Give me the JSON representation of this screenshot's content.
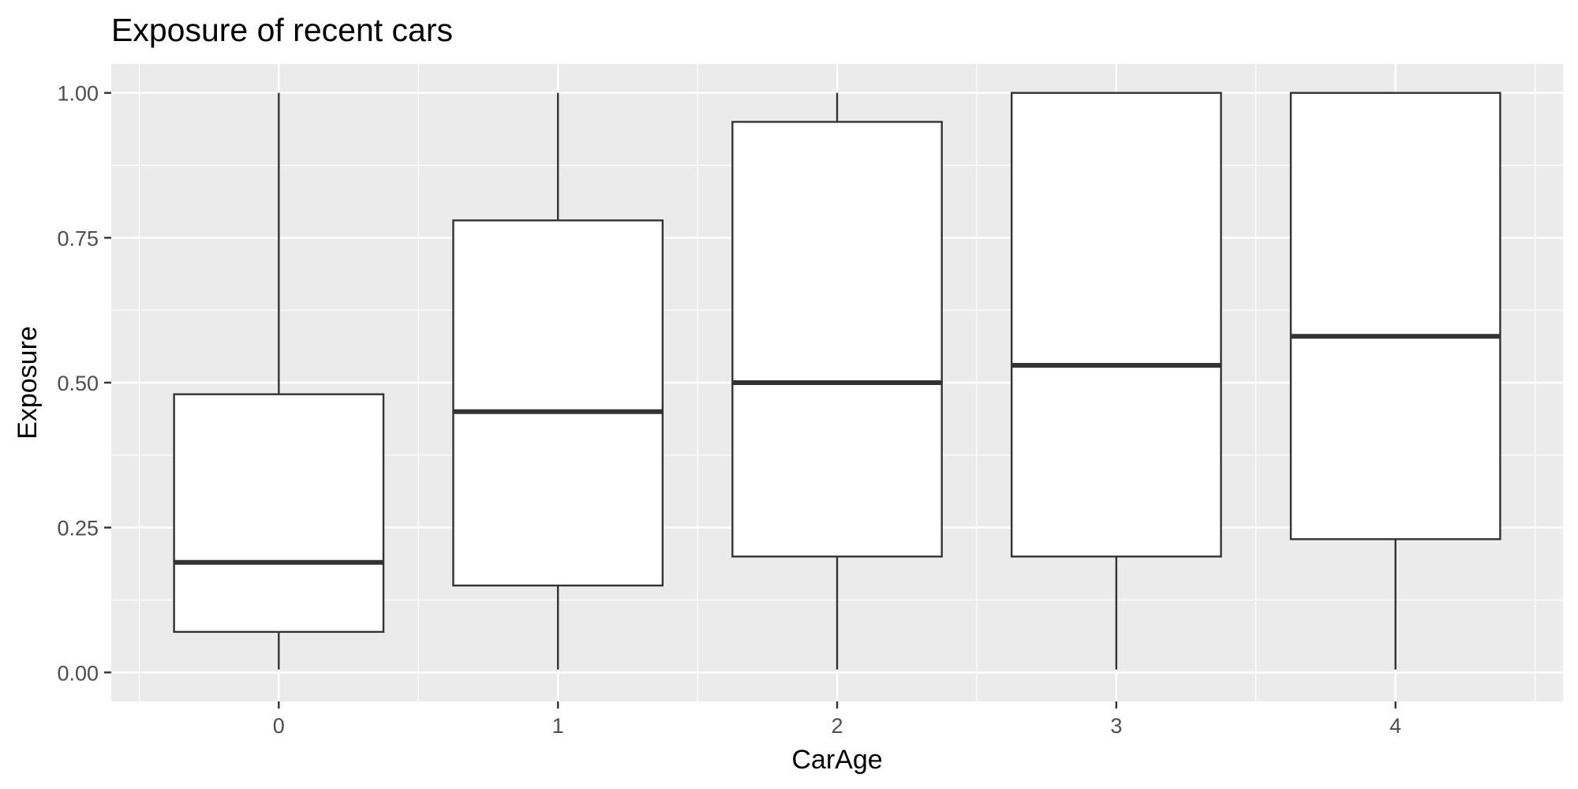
{
  "chart_data": {
    "type": "boxplot",
    "title": "Exposure of recent cars",
    "xlabel": "CarAge",
    "ylabel": "Exposure",
    "categories": [
      "0",
      "1",
      "2",
      "3",
      "4"
    ],
    "boxes": [
      {
        "category": "0",
        "min": 0.005,
        "q1": 0.07,
        "median": 0.19,
        "q3": 0.48,
        "max": 1.0
      },
      {
        "category": "1",
        "min": 0.005,
        "q1": 0.15,
        "median": 0.45,
        "q3": 0.78,
        "max": 1.0
      },
      {
        "category": "2",
        "min": 0.005,
        "q1": 0.2,
        "median": 0.5,
        "q3": 0.95,
        "max": 1.0
      },
      {
        "category": "3",
        "min": 0.005,
        "q1": 0.2,
        "median": 0.53,
        "q3": 1.0,
        "max": 1.0
      },
      {
        "category": "4",
        "min": 0.005,
        "q1": 0.23,
        "median": 0.58,
        "q3": 1.0,
        "max": 1.0
      }
    ],
    "yticks": [
      "0.00",
      "0.25",
      "0.50",
      "0.75",
      "1.00"
    ],
    "ytick_values": [
      0,
      0.25,
      0.5,
      0.75,
      1.0
    ],
    "ylim": [
      -0.05,
      1.05
    ],
    "grid": true,
    "colors": {
      "panel": "#ebebeb",
      "grid": "#ffffff",
      "box_fill": "#ffffff",
      "box_line": "#333333"
    }
  }
}
